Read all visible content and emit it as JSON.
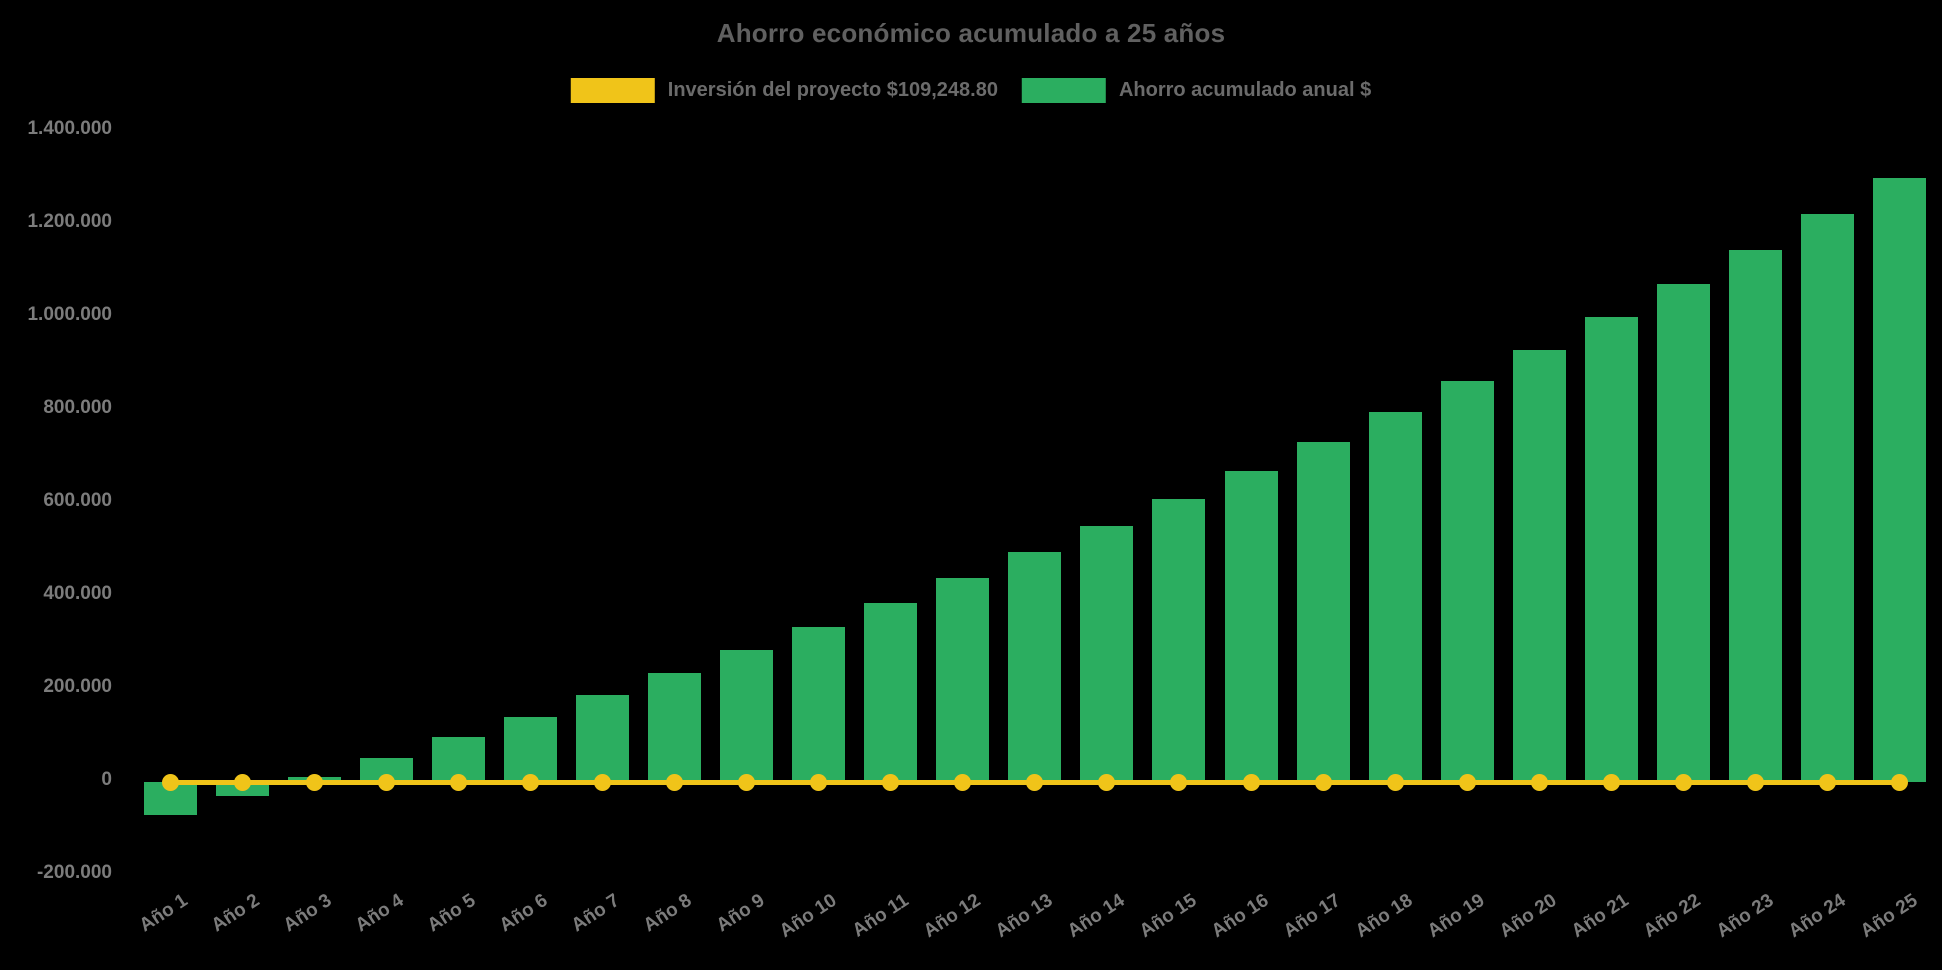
{
  "chart_data": {
    "type": "bar",
    "title": "Ahorro económico acumulado a 25 años",
    "categories": [
      "Año 1",
      "Año 2",
      "Año 3",
      "Año 4",
      "Año 5",
      "Año 6",
      "Año 7",
      "Año 8",
      "Año 9",
      "Año 10",
      "Año 11",
      "Año 12",
      "Año 13",
      "Año 14",
      "Año 15",
      "Año 16",
      "Año 17",
      "Año 18",
      "Año 19",
      "Año 20",
      "Año 21",
      "Año 22",
      "Año 23",
      "Año 24",
      "Año 25"
    ],
    "series": [
      {
        "name": "Inversión del proyecto $109,248.80",
        "type": "line",
        "color": "#f0c419",
        "values": [
          0,
          0,
          0,
          0,
          0,
          0,
          0,
          0,
          0,
          0,
          0,
          0,
          0,
          0,
          0,
          0,
          0,
          0,
          0,
          0,
          0,
          0,
          0,
          0,
          0
        ]
      },
      {
        "name": "Ahorro acumulado anual $",
        "type": "bar",
        "color": "#2bae60",
        "values": [
          -70600,
          -30800,
          10200,
          52400,
          95900,
          140800,
          186900,
          234400,
          283400,
          333800,
          385800,
          439300,
          494400,
          551100,
          609600,
          669800,
          731800,
          795700,
          861500,
          929300,
          999100,
          1071000,
          1145100,
          1221300,
          1299900
        ]
      }
    ],
    "y_ticks": [
      "1.400.000",
      "1.200.000",
      "1.000.000",
      "800.000",
      "600.000",
      "400.000",
      "200.000",
      "0",
      "-200.000"
    ],
    "ylim": [
      -200000,
      1400000
    ],
    "grid": false,
    "legend_position": "top",
    "background_color": "#000000",
    "text_colors": {
      "title": "#606060",
      "ticks": "#7c7c7c",
      "legend": "#6b6b6b"
    }
  }
}
